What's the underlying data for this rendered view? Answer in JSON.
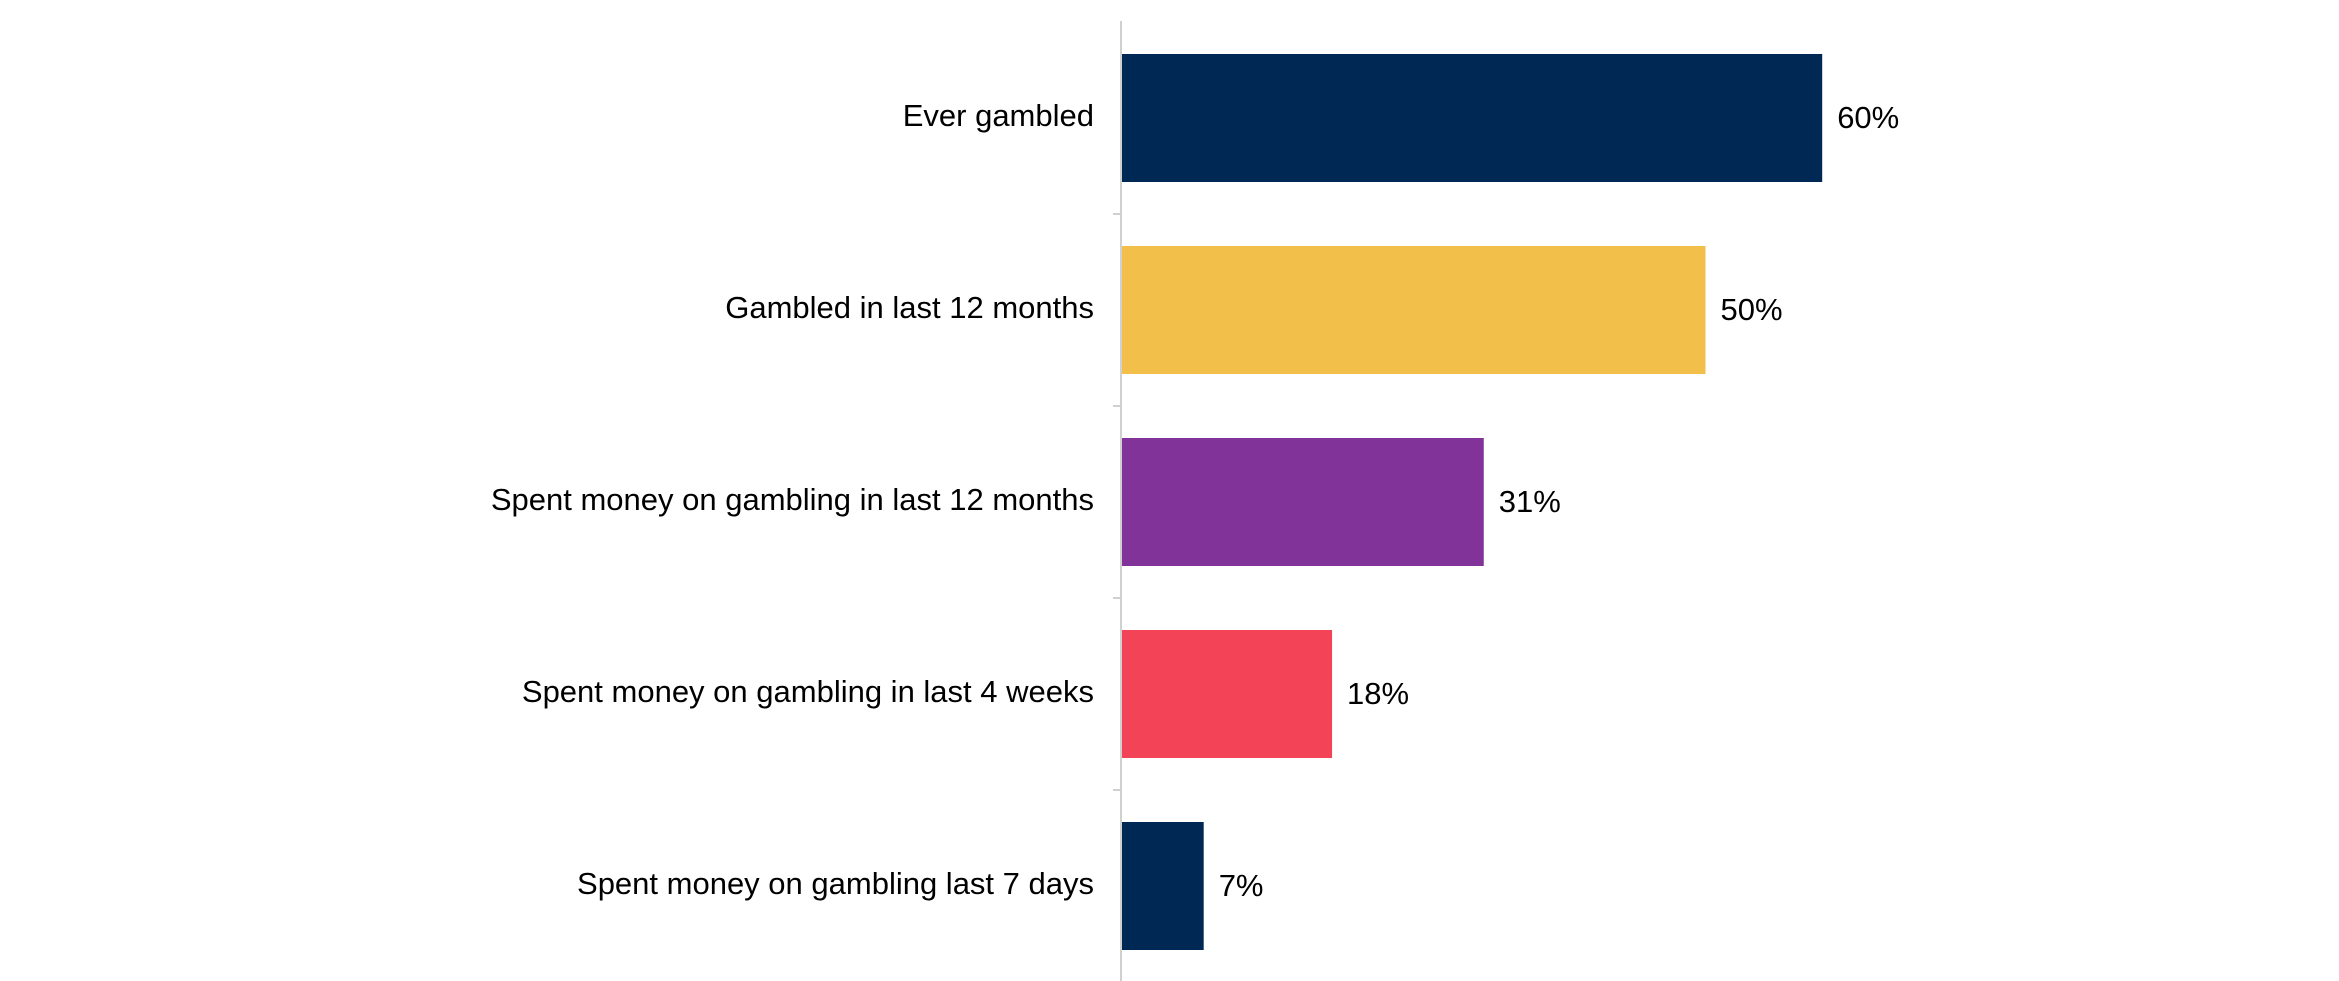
{
  "chart_data": {
    "type": "bar",
    "orientation": "horizontal",
    "categories": [
      "Ever gambled",
      "Gambled in last 12 months",
      "Spent money on gambling in last 12 months",
      "Spent money on gambling in last 4 weeks",
      "Spent money on gambling last 7 days"
    ],
    "values": [
      60,
      50,
      31,
      18,
      7
    ],
    "value_labels": [
      "60%",
      "50%",
      "31%",
      "18%",
      "7%"
    ],
    "colors": [
      "#002855",
      "#f2bf4b",
      "#823399",
      "#f24456",
      "#002855"
    ]
  }
}
